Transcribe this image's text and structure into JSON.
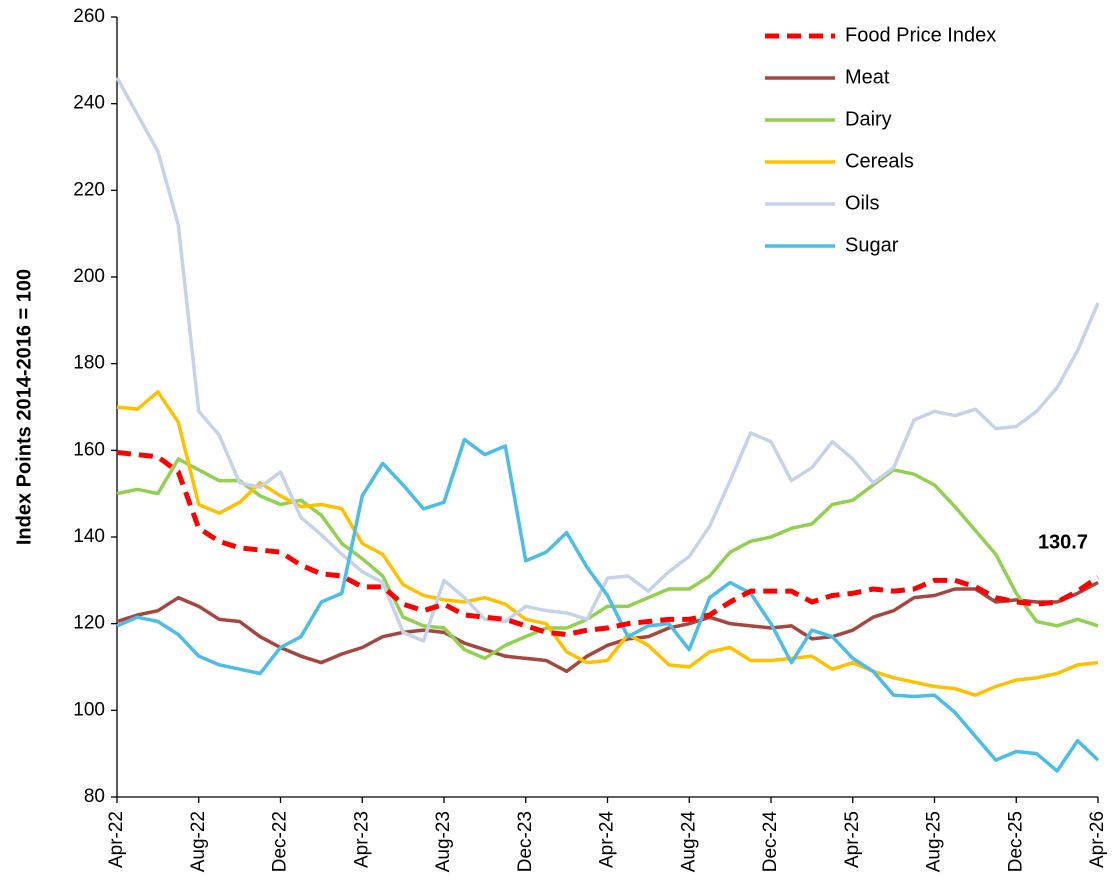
{
  "chart_data": {
    "type": "line",
    "y_label": "Index Points 2014-2016 = 100",
    "categories": [
      "Apr-22",
      null,
      null,
      null,
      "Aug-22",
      null,
      null,
      null,
      "Dec-22",
      null,
      null,
      null,
      "Apr-23",
      null,
      null,
      null,
      "Aug-23",
      null,
      null,
      null,
      "Dec-23",
      null,
      null,
      null,
      "Apr-24",
      null,
      null,
      null,
      "Aug-24",
      null,
      null,
      null,
      "Dec-24",
      null,
      null,
      null,
      "Apr-25",
      null,
      null,
      null,
      "Aug-25",
      null,
      null,
      null,
      "Dec-25",
      null,
      null,
      null,
      "Apr-26"
    ],
    "ylim": [
      80,
      260
    ],
    "yticks": [
      80,
      100,
      120,
      140,
      160,
      180,
      200,
      220,
      240,
      260
    ],
    "grid": false,
    "legend": "upper right",
    "series": [
      {
        "name": "Food Price Index",
        "color": "#ff0000",
        "dashed": true,
        "values": [
          159.5,
          159,
          158.5,
          155,
          142,
          139,
          137.5,
          137,
          136.5,
          133.5,
          131.5,
          131,
          128.5,
          128.5,
          124.5,
          123,
          124.5,
          122,
          121.5,
          121,
          119.5,
          118,
          117.5,
          118.5,
          119,
          120,
          120.5,
          121,
          121,
          122,
          125,
          127.5,
          127.5,
          127.5,
          125,
          126.5,
          127,
          128,
          127.5,
          128,
          130,
          130,
          128.5,
          126,
          125,
          124.5,
          125,
          127.5,
          130.7
        ]
      },
      {
        "name": "Meat",
        "color": "#a5463f",
        "dashed": false,
        "values": [
          120.5,
          122,
          123,
          126,
          124,
          121,
          120.5,
          117,
          114.5,
          112.5,
          111,
          113,
          114.5,
          117,
          118,
          118.5,
          118,
          115.5,
          114,
          112.5,
          112,
          111.5,
          109,
          112.5,
          115,
          116.5,
          117,
          119,
          120,
          121.5,
          120,
          119.5,
          119,
          119.5,
          116.5,
          117,
          118.5,
          121.5,
          123,
          126,
          126.5,
          128,
          128,
          125,
          125.5,
          125,
          125,
          127,
          129.5
        ]
      },
      {
        "name": "Dairy",
        "color": "#92d050",
        "dashed": false,
        "values": [
          150,
          151,
          150,
          158,
          155.5,
          153,
          153,
          149.5,
          147.5,
          148.5,
          145,
          138.5,
          135,
          131,
          121.5,
          119.5,
          119,
          114,
          112,
          115,
          117,
          119,
          119,
          121,
          124,
          124,
          126,
          128,
          128,
          131,
          136.5,
          139,
          140,
          142,
          143,
          147.5,
          148.5,
          152,
          155.5,
          154.5,
          152,
          147,
          141.5,
          136,
          127,
          120.5,
          119.5,
          121,
          119.5
        ]
      },
      {
        "name": "Cereals",
        "color": "#ffc000",
        "dashed": false,
        "values": [
          170,
          169.5,
          173.5,
          166.5,
          147.5,
          145.5,
          148,
          152.5,
          149.5,
          147,
          147.5,
          146.5,
          138.5,
          136,
          129,
          126.5,
          125.5,
          125,
          126,
          124.5,
          121,
          120,
          113.5,
          111,
          111.5,
          117.5,
          115,
          110.5,
          110,
          113.5,
          114.5,
          111.5,
          111.5,
          112,
          112.5,
          109.5,
          111,
          109,
          107.5,
          106.5,
          105.5,
          105,
          103.5,
          105.5,
          107,
          107.5,
          108.5,
          110.5,
          111
        ]
      },
      {
        "name": "Oils",
        "color": "#c5d3ea",
        "dashed": false,
        "values": [
          246,
          237.5,
          229,
          212,
          169,
          163.5,
          152.5,
          151.5,
          155,
          144.5,
          140.5,
          136,
          132,
          129.5,
          118,
          116,
          130,
          126,
          121,
          120.5,
          124,
          123,
          122.5,
          121,
          130.5,
          131,
          127.5,
          132,
          135.5,
          142.5,
          153,
          164,
          162,
          153,
          156,
          162,
          158,
          152.5,
          156,
          167,
          169,
          168,
          169.5,
          165,
          165.5,
          169,
          174.5,
          183,
          194
        ]
      },
      {
        "name": "Sugar",
        "color": "#4bbde8",
        "dashed": false,
        "values": [
          119.5,
          121.5,
          120.5,
          117.5,
          112.5,
          110.5,
          109.5,
          108.5,
          114.5,
          117,
          125,
          127,
          149.5,
          157,
          152,
          146.5,
          148,
          162.5,
          159,
          161,
          134.5,
          136.5,
          141,
          133,
          126.5,
          117,
          119.5,
          120,
          114,
          126,
          129.5,
          127,
          120,
          111,
          118.5,
          117,
          112,
          109,
          103.5,
          103.2,
          103.5,
          99.5,
          94,
          88.5,
          90.5,
          90,
          86,
          93,
          88.5
        ]
      }
    ]
  }
}
